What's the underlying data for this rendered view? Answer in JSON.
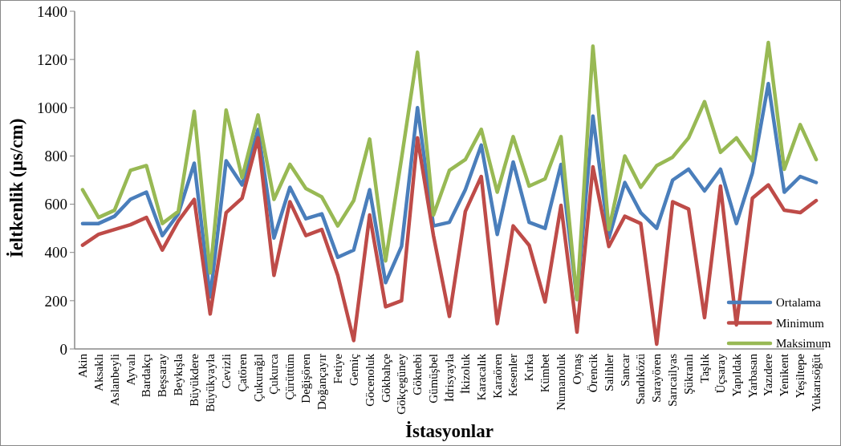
{
  "chart_data": {
    "type": "line",
    "xlabel": "İstasyonlar",
    "ylabel": "İeltkenlik (µs/cm)",
    "categories": [
      "Akin",
      "Aksaklı",
      "Aslanbeyli",
      "Ayvalı",
      "Bardakçı",
      "Beşsaray",
      "Beykışla",
      "Büyükdere",
      "Büyükyayla",
      "Cevizli",
      "Çatören",
      "Çukurağıl",
      "Çukurca",
      "Çürüttüm",
      "Değişören",
      "Doğançayır",
      "Fetiye",
      "Gemiç",
      "Göcenoluk",
      "Gökbahçe",
      "Gökçegüney",
      "Göknebi",
      "Gümüşbel",
      "İdrisyayla",
      "İkizoluk",
      "Karacalık",
      "Karaören",
      "Kesenler",
      "Kırka",
      "Kümbet",
      "Numanoluk",
      "Oynaş",
      "Örencik",
      "Salihler",
      "Sancar",
      "Sandıközü",
      "Sarayören",
      "Sarıcailyas",
      "Şükranlı",
      "Taşlık",
      "Üçsaray",
      "Yapıldak",
      "Yarbasan",
      "Yazıdere",
      "Yenikent",
      "Yeşiltepe",
      "Yukarısöğüt"
    ],
    "series": [
      {
        "name": "Ortalama",
        "color": "#4a7ebb",
        "values": [
          520,
          520,
          550,
          620,
          650,
          470,
          560,
          770,
          215,
          780,
          680,
          910,
          460,
          670,
          540,
          560,
          380,
          410,
          660,
          275,
          425,
          1000,
          510,
          525,
          660,
          845,
          475,
          775,
          525,
          500,
          765,
          205,
          965,
          460,
          690,
          565,
          500,
          700,
          745,
          655,
          745,
          520,
          730,
          1100,
          650,
          715,
          690
        ]
      },
      {
        "name": "Minimum",
        "color": "#be4b48",
        "values": [
          430,
          475,
          495,
          515,
          545,
          410,
          530,
          620,
          145,
          565,
          625,
          875,
          305,
          610,
          470,
          495,
          305,
          35,
          555,
          175,
          200,
          875,
          470,
          135,
          570,
          715,
          105,
          510,
          430,
          195,
          595,
          70,
          755,
          425,
          550,
          520,
          20,
          610,
          580,
          130,
          675,
          100,
          625,
          680,
          575,
          565,
          615
        ]
      },
      {
        "name": "Maksimum",
        "color": "#98b954",
        "values": [
          660,
          545,
          575,
          740,
          760,
          520,
          570,
          985,
          315,
          990,
          710,
          970,
          620,
          765,
          665,
          630,
          510,
          615,
          870,
          365,
          790,
          1230,
          555,
          740,
          785,
          910,
          650,
          880,
          675,
          705,
          880,
          205,
          1255,
          495,
          800,
          670,
          760,
          795,
          875,
          1025,
          815,
          875,
          780,
          1270,
          745,
          930,
          785
        ]
      }
    ],
    "ylim": [
      0,
      1400
    ],
    "yticks": [
      0,
      200,
      400,
      600,
      800,
      1000,
      1200,
      1400
    ],
    "grid": false,
    "legend": "bottom right",
    "marker": "none",
    "line_style": "solid"
  }
}
